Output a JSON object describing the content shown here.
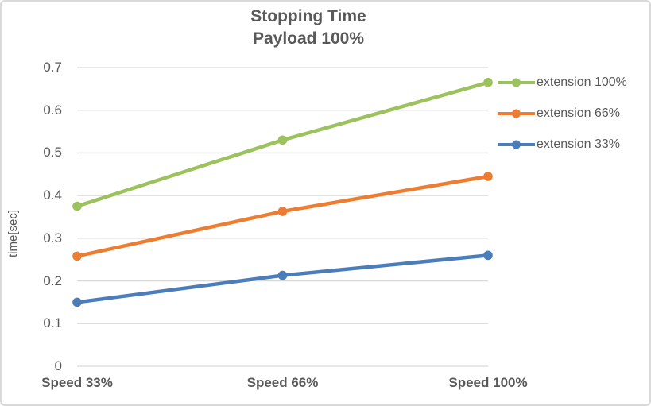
{
  "chart_data": {
    "type": "line",
    "title": "Stopping Time",
    "subtitle": "Payload 100%",
    "xlabel": "",
    "ylabel": "time[sec]",
    "categories": [
      "Speed 33%",
      "Speed 66%",
      "Speed 100%"
    ],
    "series": [
      {
        "name": "extension 100%",
        "color": "#9cc25e",
        "values": [
          0.375,
          0.53,
          0.665
        ]
      },
      {
        "name": "extension 66%",
        "color": "#ed7d31",
        "values": [
          0.258,
          0.363,
          0.445
        ]
      },
      {
        "name": "extension 33%",
        "color": "#4b7dbb",
        "values": [
          0.15,
          0.213,
          0.26
        ]
      }
    ],
    "ylim": [
      0,
      0.7
    ],
    "ytick_step": 0.1,
    "grid": true,
    "legend_position": "right",
    "colors": {
      "text": "#595959",
      "gridline": "#d9d9d9",
      "frame_border": "#d9d9d9",
      "background": "#ffffff"
    }
  }
}
